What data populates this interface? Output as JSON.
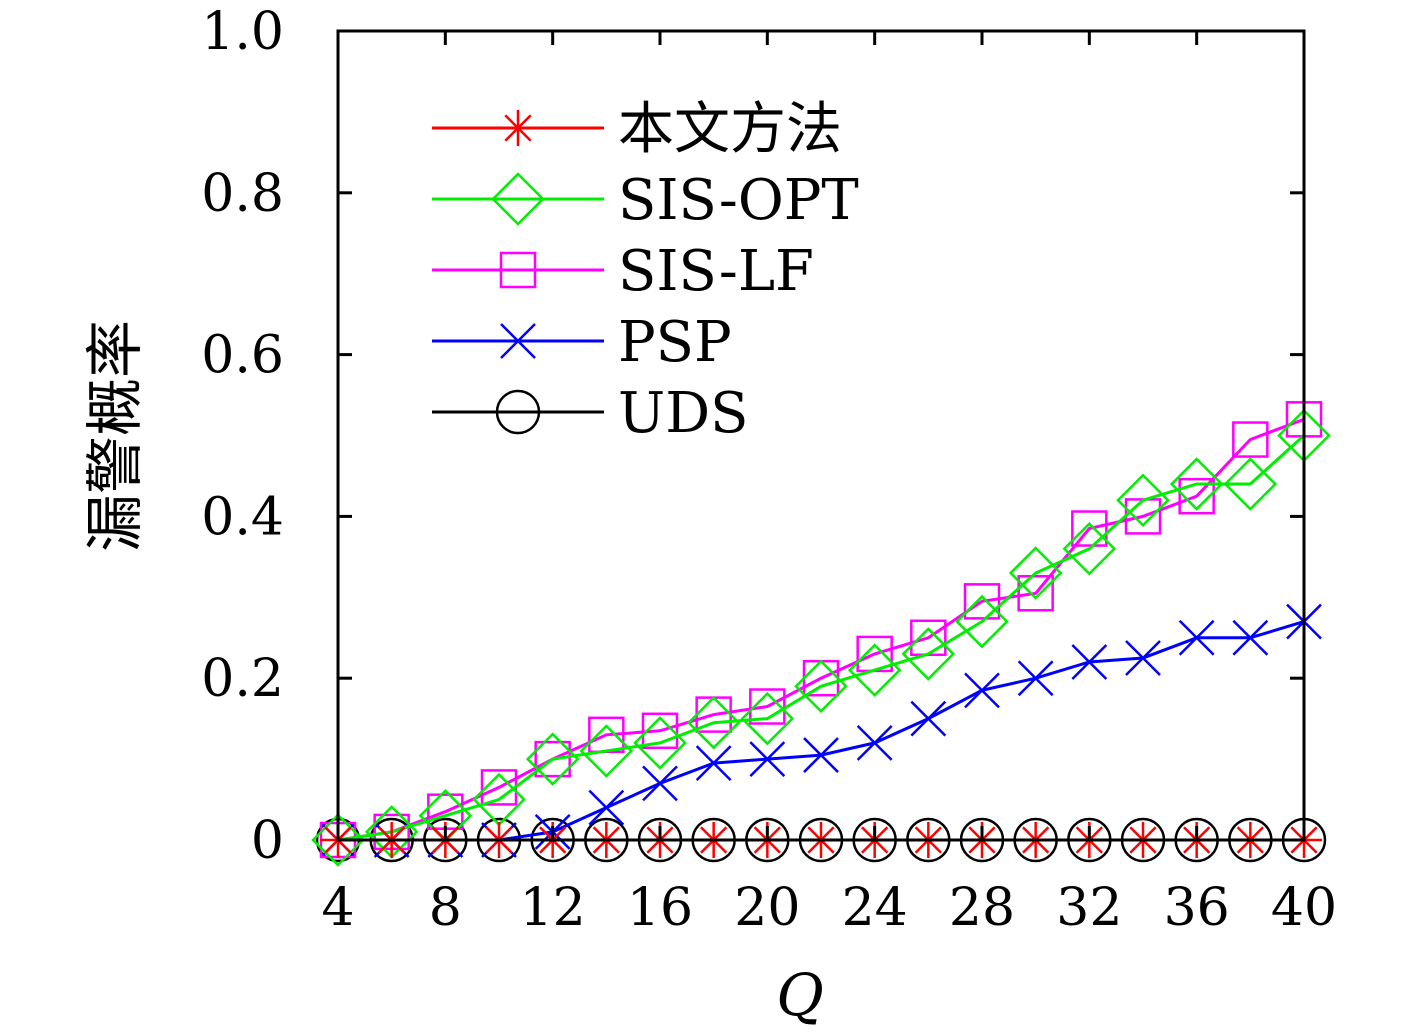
{
  "chart_data": {
    "type": "line",
    "title": "",
    "xlabel": "Q",
    "ylabel": "漏警概率",
    "xlim": [
      4,
      40
    ],
    "ylim": [
      0,
      1.0
    ],
    "xticks": [
      4,
      8,
      12,
      16,
      20,
      24,
      28,
      32,
      36,
      40
    ],
    "xtick_labels": [
      "4",
      "8",
      "12",
      "16",
      "20",
      "24",
      "28",
      "32",
      "36",
      "40"
    ],
    "yticks": [
      0,
      0.2,
      0.4,
      0.6,
      0.8,
      1.0
    ],
    "ytick_labels": [
      "0",
      "0.2",
      "0.4",
      "0.6",
      "0.8",
      "1.0"
    ],
    "grid": false,
    "legend_position": "top-left",
    "x": [
      4,
      6,
      8,
      10,
      12,
      14,
      16,
      18,
      20,
      22,
      24,
      26,
      28,
      30,
      32,
      34,
      36,
      38,
      40
    ],
    "series": [
      {
        "name": "本文方法",
        "color": "#ff0000",
        "marker": "asterisk",
        "values": [
          0,
          0,
          0,
          0,
          0,
          0,
          0,
          0,
          0,
          0,
          0,
          0,
          0,
          0,
          0,
          0,
          0,
          0,
          0
        ]
      },
      {
        "name": "SIS-OPT",
        "color": "#00ee00",
        "marker": "diamond",
        "values": [
          0.0,
          0.01,
          0.03,
          0.05,
          0.1,
          0.11,
          0.12,
          0.145,
          0.15,
          0.19,
          0.21,
          0.23,
          0.27,
          0.33,
          0.36,
          0.42,
          0.44,
          0.44,
          0.5
        ]
      },
      {
        "name": "SIS-LF",
        "color": "#ff00ff",
        "marker": "square",
        "values": [
          0.0,
          0.01,
          0.035,
          0.065,
          0.1,
          0.13,
          0.135,
          0.155,
          0.165,
          0.2,
          0.23,
          0.25,
          0.295,
          0.305,
          0.385,
          0.4,
          0.425,
          0.495,
          0.52
        ]
      },
      {
        "name": "PSP",
        "color": "#0000ff",
        "marker": "x",
        "values": [
          0,
          0,
          0,
          0,
          0.01,
          0.04,
          0.07,
          0.095,
          0.1,
          0.105,
          0.12,
          0.15,
          0.185,
          0.2,
          0.22,
          0.225,
          0.25,
          0.25,
          0.27
        ]
      },
      {
        "name": "UDS",
        "color": "#000000",
        "marker": "circle",
        "values": [
          0,
          0,
          0,
          0,
          0,
          0,
          0,
          0,
          0,
          0,
          0,
          0,
          0,
          0,
          0,
          0,
          0,
          0,
          0
        ]
      }
    ]
  }
}
